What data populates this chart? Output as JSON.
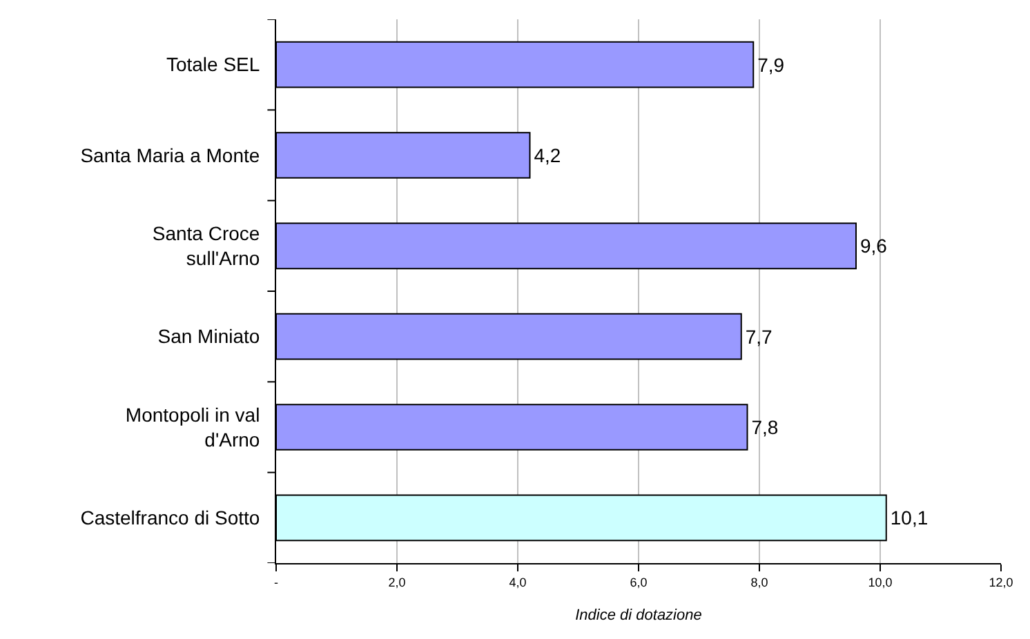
{
  "chart_data": {
    "type": "bar",
    "orientation": "horizontal",
    "xlabel": "Indice di dotazione",
    "categories": [
      "Totale SEL",
      "Santa Maria a Monte",
      "Santa Croce\nsull'Arno",
      "San Miniato",
      "Montopoli in val\nd'Arno",
      "Castelfranco di Sotto"
    ],
    "values": [
      7.9,
      4.2,
      9.6,
      7.7,
      7.8,
      10.1
    ],
    "value_labels": [
      "7,9",
      "4,2",
      "9,6",
      "7,7",
      "7,8",
      "10,1"
    ],
    "colors": [
      "#9999ff",
      "#9999ff",
      "#9999ff",
      "#9999ff",
      "#9999ff",
      "#ccffff"
    ],
    "xlim": [
      0,
      12
    ],
    "xticks": [
      {
        "value": 0,
        "label": "-"
      },
      {
        "value": 2,
        "label": "2,0"
      },
      {
        "value": 4,
        "label": "4,0"
      },
      {
        "value": 6,
        "label": "6,0"
      },
      {
        "value": 8,
        "label": "8,0"
      },
      {
        "value": 10,
        "label": "10,0"
      },
      {
        "value": 12,
        "label": "12,0"
      }
    ],
    "grid": "x",
    "legend": false
  }
}
